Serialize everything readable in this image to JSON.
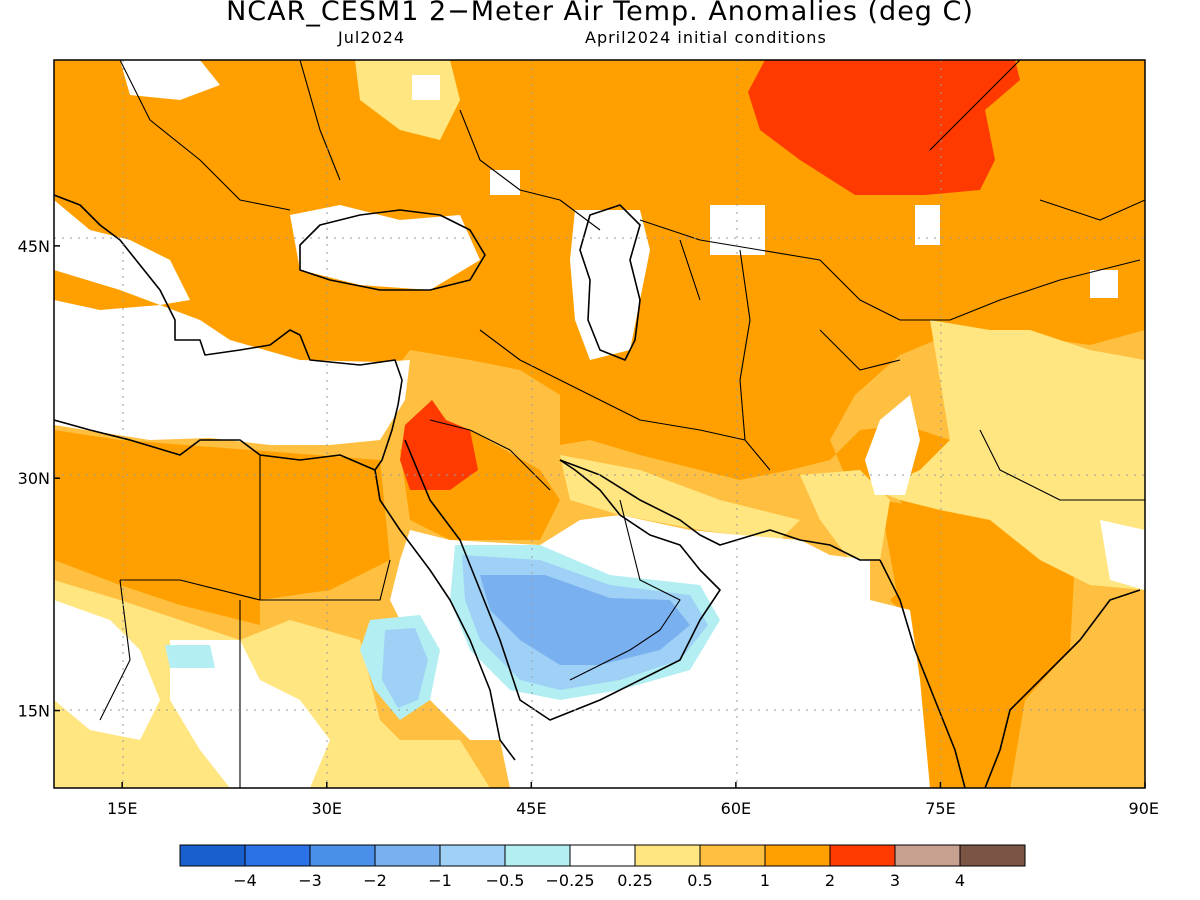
{
  "header": {
    "title": "NCAR_CESM1 2−Meter Air Temp. Anomalies (deg C)",
    "month": "Jul2024",
    "initial_conditions": "April2024 initial conditions"
  },
  "map": {
    "lon_range": [
      10,
      90
    ],
    "lat_range": [
      10,
      57
    ],
    "lon_ticks": [
      {
        "value": 15,
        "label": "15E"
      },
      {
        "value": 30,
        "label": "30E"
      },
      {
        "value": 45,
        "label": "45E"
      },
      {
        "value": 60,
        "label": "60E"
      },
      {
        "value": 75,
        "label": "75E"
      },
      {
        "value": 90,
        "label": "90E"
      }
    ],
    "lat_ticks": [
      {
        "value": 45,
        "label": "45N"
      },
      {
        "value": 30,
        "label": "30N"
      },
      {
        "value": 15,
        "label": "15N"
      }
    ],
    "grid": true
  },
  "colorbar": {
    "colors": [
      "#1a5fce",
      "#2b72e6",
      "#4a90ea",
      "#79b0f0",
      "#9fd0f6",
      "#b3eef2",
      "#ffffff",
      "#ffe680",
      "#ffbf40",
      "#ffa000",
      "#ff3a00",
      "#c8a090",
      "#7a5545"
    ],
    "labels": [
      "−4",
      "−3",
      "−2",
      "−1",
      "−0.5",
      "−0.25",
      "0.25",
      "0.5",
      "1",
      "2",
      "3",
      "4"
    ]
  },
  "colors": {
    "anom_0_5": "#ffe680",
    "anom_1": "#ffbf40",
    "anom_2": "#ffa000",
    "anom_3": "#ff3a00",
    "anom_m0_25": "#b3eef2",
    "anom_m0_5": "#9fd0f6",
    "anom_m1": "#79b0f0"
  }
}
